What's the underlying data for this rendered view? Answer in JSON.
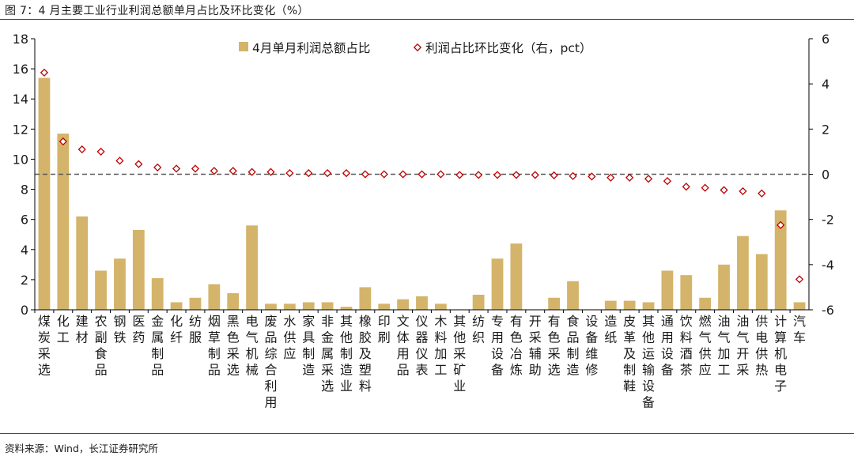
{
  "figure": {
    "title": "图 7：4 月主要工业行业利润总额单月占比及环比变化（%）",
    "source": "资料来源：Wind，长江证券研究所"
  },
  "colors": {
    "bar": "#D4B46A",
    "marker": "#C00000",
    "zero_line": "#595959",
    "axis": "#000000"
  },
  "chart_data": {
    "type": "bar",
    "categories": [
      "煤炭采选",
      "化工",
      "建材",
      "农副食品",
      "钢铁",
      "医药",
      "金属制品",
      "化纤",
      "纺服",
      "烟草制品",
      "黑色采选",
      "电气机械",
      "废品综合利用",
      "水供应",
      "家具制造",
      "非金属采选",
      "其他制造业",
      "橡胶及塑料",
      "印刷",
      "文体用品",
      "仪器仪表",
      "木料加工",
      "其他采矿业",
      "纺织",
      "专用设备",
      "有色冶炼",
      "开采辅助",
      "有色采选",
      "食品制造",
      "设备维修",
      "造纸",
      "皮革及制鞋",
      "其他运输设备",
      "通用设备",
      "饮料酒茶",
      "燃气供应",
      "油气加工",
      "油气开采",
      "供电供热",
      "计算机电子",
      "汽车"
    ],
    "series": [
      {
        "name": "4月单月利润总额占比",
        "type": "bar",
        "axis": "left",
        "values": [
          15.4,
          11.7,
          6.2,
          2.6,
          3.4,
          5.3,
          2.1,
          0.5,
          0.8,
          1.7,
          1.1,
          5.6,
          0.4,
          0.4,
          0.5,
          0.5,
          0.2,
          1.5,
          0.4,
          0.7,
          0.9,
          0.4,
          0.0,
          1.0,
          3.4,
          4.4,
          0.0,
          0.8,
          1.9,
          0.0,
          0.6,
          0.6,
          0.5,
          2.6,
          2.3,
          0.8,
          3.0,
          4.9,
          3.7,
          6.6,
          0.5
        ]
      },
      {
        "name": "利润占比环比变化（右，pct）",
        "type": "scatter",
        "marker": "diamond-open",
        "axis": "right",
        "values": [
          4.5,
          1.45,
          1.1,
          1.0,
          0.6,
          0.45,
          0.3,
          0.25,
          0.25,
          0.15,
          0.15,
          0.1,
          0.1,
          0.05,
          0.05,
          0.05,
          0.05,
          0.0,
          0.0,
          0.0,
          0.0,
          0.0,
          -0.03,
          -0.03,
          -0.03,
          -0.03,
          -0.03,
          -0.05,
          -0.08,
          -0.1,
          -0.15,
          -0.15,
          -0.2,
          -0.3,
          -0.55,
          -0.6,
          -0.7,
          -0.75,
          -0.85,
          -2.25,
          -4.65
        ]
      }
    ],
    "y_left": {
      "min": 0,
      "max": 18,
      "ticks": [
        0,
        2,
        4,
        6,
        8,
        10,
        12,
        14,
        16,
        18
      ]
    },
    "y_right": {
      "min": -6,
      "max": 6,
      "ticks": [
        -6,
        -4,
        -2,
        0,
        2,
        4,
        6
      ]
    },
    "zero_reference": "dashed line at right-axis 0",
    "legend_position": "top",
    "grid": false
  }
}
